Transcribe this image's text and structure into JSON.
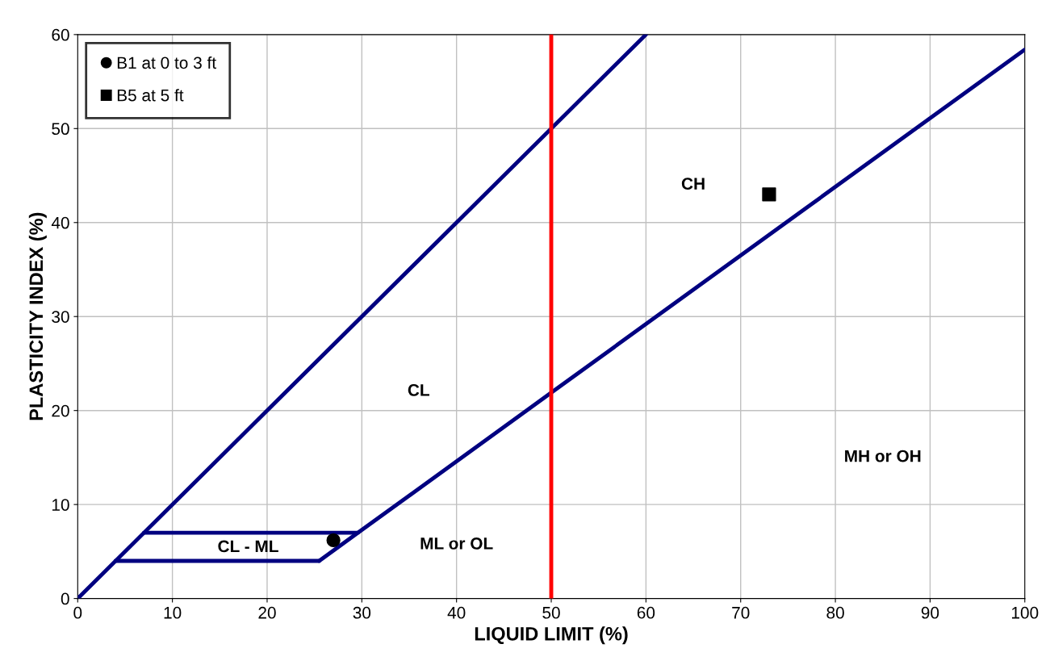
{
  "chart_data": {
    "type": "line",
    "xlabel": "LIQUID LIMIT (%)",
    "ylabel": "PLASTICITY INDEX (%)",
    "xlim": [
      0,
      100
    ],
    "ylim": [
      0,
      60
    ],
    "xticks": [
      0,
      10,
      20,
      30,
      40,
      50,
      60,
      70,
      80,
      90,
      100
    ],
    "yticks": [
      0,
      10,
      20,
      30,
      40,
      50,
      60
    ],
    "grid": true,
    "legend": "top left",
    "line_style": "solid",
    "series": [
      {
        "color": "#000080",
        "marker": "none",
        "x": [
          0,
          60
        ],
        "values": [
          0,
          60
        ]
      },
      {
        "color": "#000080",
        "marker": "none",
        "x": [
          25.5,
          29.6,
          50,
          100
        ],
        "values": [
          4,
          7,
          21.9,
          58.4
        ]
      },
      {
        "color": "#000080",
        "marker": "none",
        "x": [
          4,
          25.5
        ],
        "values": [
          4,
          4
        ]
      },
      {
        "color": "#000080",
        "marker": "none",
        "x": [
          7,
          29.6
        ],
        "values": [
          7,
          7
        ]
      },
      {
        "type": "scatter",
        "name": "B1 at 0 to 3 ft",
        "color": "#000000",
        "marker": "circle",
        "x": [
          27
        ],
        "values": [
          6.2
        ]
      },
      {
        "type": "scatter",
        "name": "B5 at 5 ft",
        "color": "#000000",
        "marker": "square",
        "x": [
          73
        ],
        "values": [
          43
        ]
      }
    ],
    "ref_lines": [
      {
        "axis": "x",
        "value": 50,
        "color": "#ff0000",
        "line_style": "solid"
      }
    ],
    "annotations": [
      "CH",
      "CL",
      "MH or OH",
      "ML or OL",
      "CL - ML"
    ]
  }
}
